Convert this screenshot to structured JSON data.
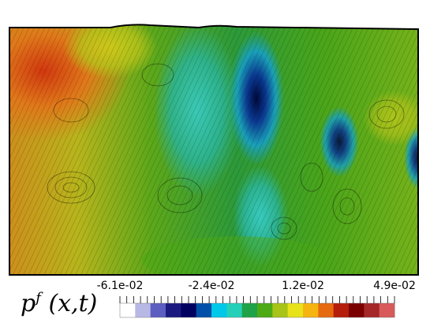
{
  "colorbar": {
    "title_base": "p",
    "title_sup": "f",
    "title_args": "(x,t)",
    "ticks": [
      "-6.1e-02",
      "-2.4e-02",
      "1.2e-02",
      "4.9e-02"
    ],
    "colors": [
      "#ffffff",
      "#b7b8e6",
      "#5c5ec0",
      "#1b1a80",
      "#000060",
      "#004fa8",
      "#00c8e8",
      "#26d0b8",
      "#1ea348",
      "#4caa14",
      "#a8c418",
      "#e8e21a",
      "#f5b410",
      "#e66a10",
      "#b41e0a",
      "#7a0000",
      "#a42828",
      "#d85a5a"
    ]
  },
  "field": {
    "background": "#6aa61a",
    "low_color": "#00124f",
    "mid_color": "#2ec2bd",
    "high_color": "#dd5512"
  }
}
